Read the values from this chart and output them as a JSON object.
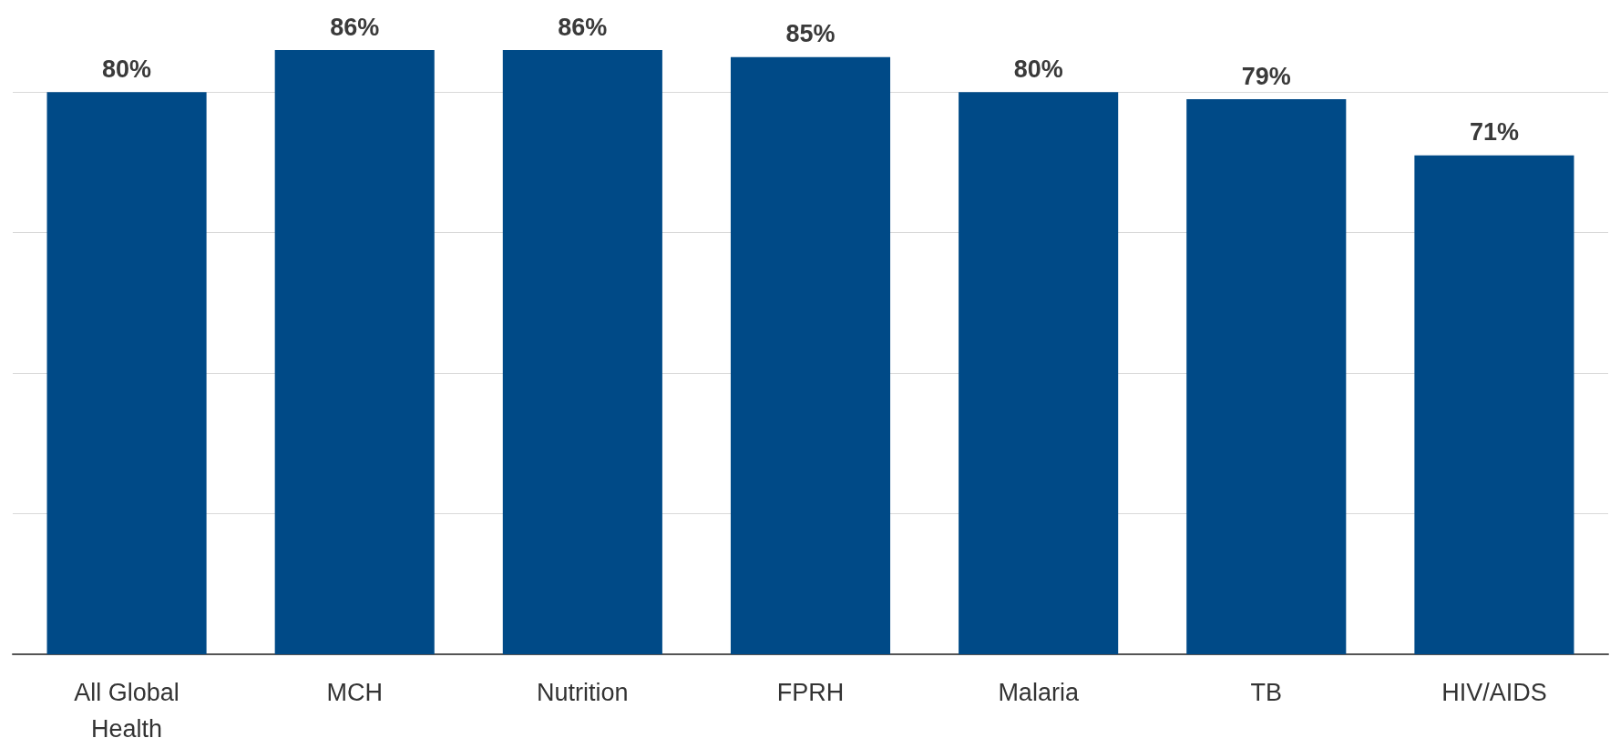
{
  "chart_data": {
    "type": "bar",
    "categories": [
      "All Global\nHealth",
      "MCH",
      "Nutrition",
      "FPRH",
      "Malaria",
      "TB",
      "HIV/AIDS"
    ],
    "values": [
      80,
      86,
      86,
      85,
      80,
      79,
      71
    ],
    "value_labels": [
      "80%",
      "86%",
      "86%",
      "85%",
      "80%",
      "79%",
      "71%"
    ],
    "color": "#004a87",
    "yticks": [
      {
        "value": 0,
        "label": null
      },
      {
        "value": 20,
        "label": null
      },
      {
        "value": 40,
        "label": null
      },
      {
        "value": 60,
        "label": null
      },
      {
        "value": 80,
        "label": null
      }
    ],
    "grid": "y",
    "tick_labels": "x"
  }
}
